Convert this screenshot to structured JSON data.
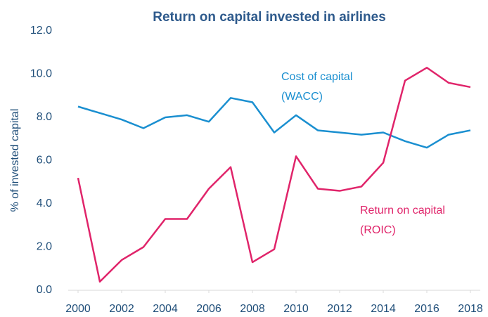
{
  "chart_data": {
    "type": "line",
    "title": "Return on capital invested in airlines",
    "y_label": "% of invested capital",
    "x": [
      2000,
      2001,
      2002,
      2003,
      2004,
      2005,
      2006,
      2007,
      2008,
      2009,
      2010,
      2011,
      2012,
      2013,
      2014,
      2015,
      2016,
      2017,
      2018
    ],
    "series": [
      {
        "label": [
          "Cost of capital",
          "(WACC)"
        ],
        "color": "#1a8fd0",
        "values": [
          8.5,
          8.2,
          7.9,
          7.5,
          8.0,
          8.1,
          7.8,
          8.9,
          8.7,
          7.3,
          8.1,
          7.4,
          7.3,
          7.2,
          7.3,
          6.9,
          6.6,
          7.2,
          7.4
        ]
      },
      {
        "label": [
          "Return on capital",
          "(ROIC)"
        ],
        "color": "#e0246a",
        "values": [
          5.2,
          0.4,
          1.4,
          2.0,
          3.3,
          3.3,
          4.7,
          5.7,
          1.3,
          1.9,
          6.2,
          4.7,
          4.6,
          4.8,
          5.9,
          9.7,
          10.3,
          9.6,
          9.4
        ]
      }
    ],
    "xlim": [
      2000,
      2018
    ],
    "xticks": [
      2000,
      2002,
      2004,
      2006,
      2008,
      2010,
      2012,
      2014,
      2016,
      2018
    ],
    "ylim": [
      0,
      12
    ],
    "yticks": [
      {
        "value": 0,
        "label": "0.0"
      },
      {
        "value": 2,
        "label": "2.0"
      },
      {
        "value": 4,
        "label": "4.0"
      },
      {
        "value": 6,
        "label": "6.0"
      },
      {
        "value": 8,
        "label": "8.0"
      },
      {
        "value": 10,
        "label": "10.0"
      },
      {
        "value": 12,
        "label": "12.0"
      }
    ],
    "grid": false
  }
}
